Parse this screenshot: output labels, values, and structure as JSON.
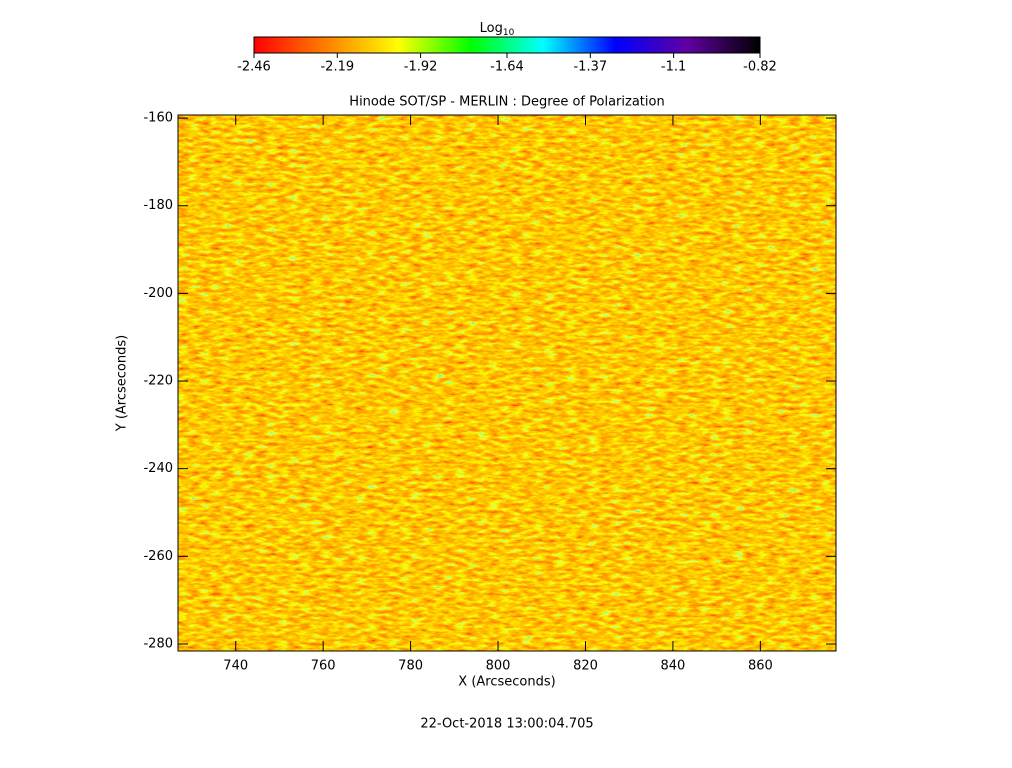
{
  "chart_data": {
    "type": "heatmap",
    "title": "Hinode SOT/SP - MERLIN : Degree of Polarization",
    "xlabel": "X (Arcseconds)",
    "ylabel": "Y (Arcseconds)",
    "footer": "22-Oct-2018 13:00:04.705",
    "xlim": [
      726.8,
      877.3
    ],
    "ylim": [
      -281.6,
      -159.3
    ],
    "xticks": [
      740,
      760,
      780,
      800,
      820,
      840,
      860
    ],
    "yticks": [
      -280,
      -260,
      -240,
      -220,
      -200,
      -180,
      -160
    ],
    "colorbar": {
      "label": "Log",
      "label_subscript": "10",
      "clim": [
        -2.46,
        -0.82
      ],
      "ticks": [
        -2.46,
        -2.19,
        -1.92,
        -1.64,
        -1.37,
        -1.1,
        -0.82
      ],
      "colormap": [
        "#ff0000",
        "#ff8000",
        "#ffff00",
        "#00ff00",
        "#00ffff",
        "#0000ff",
        "#6000a0",
        "#000000"
      ]
    }
  }
}
